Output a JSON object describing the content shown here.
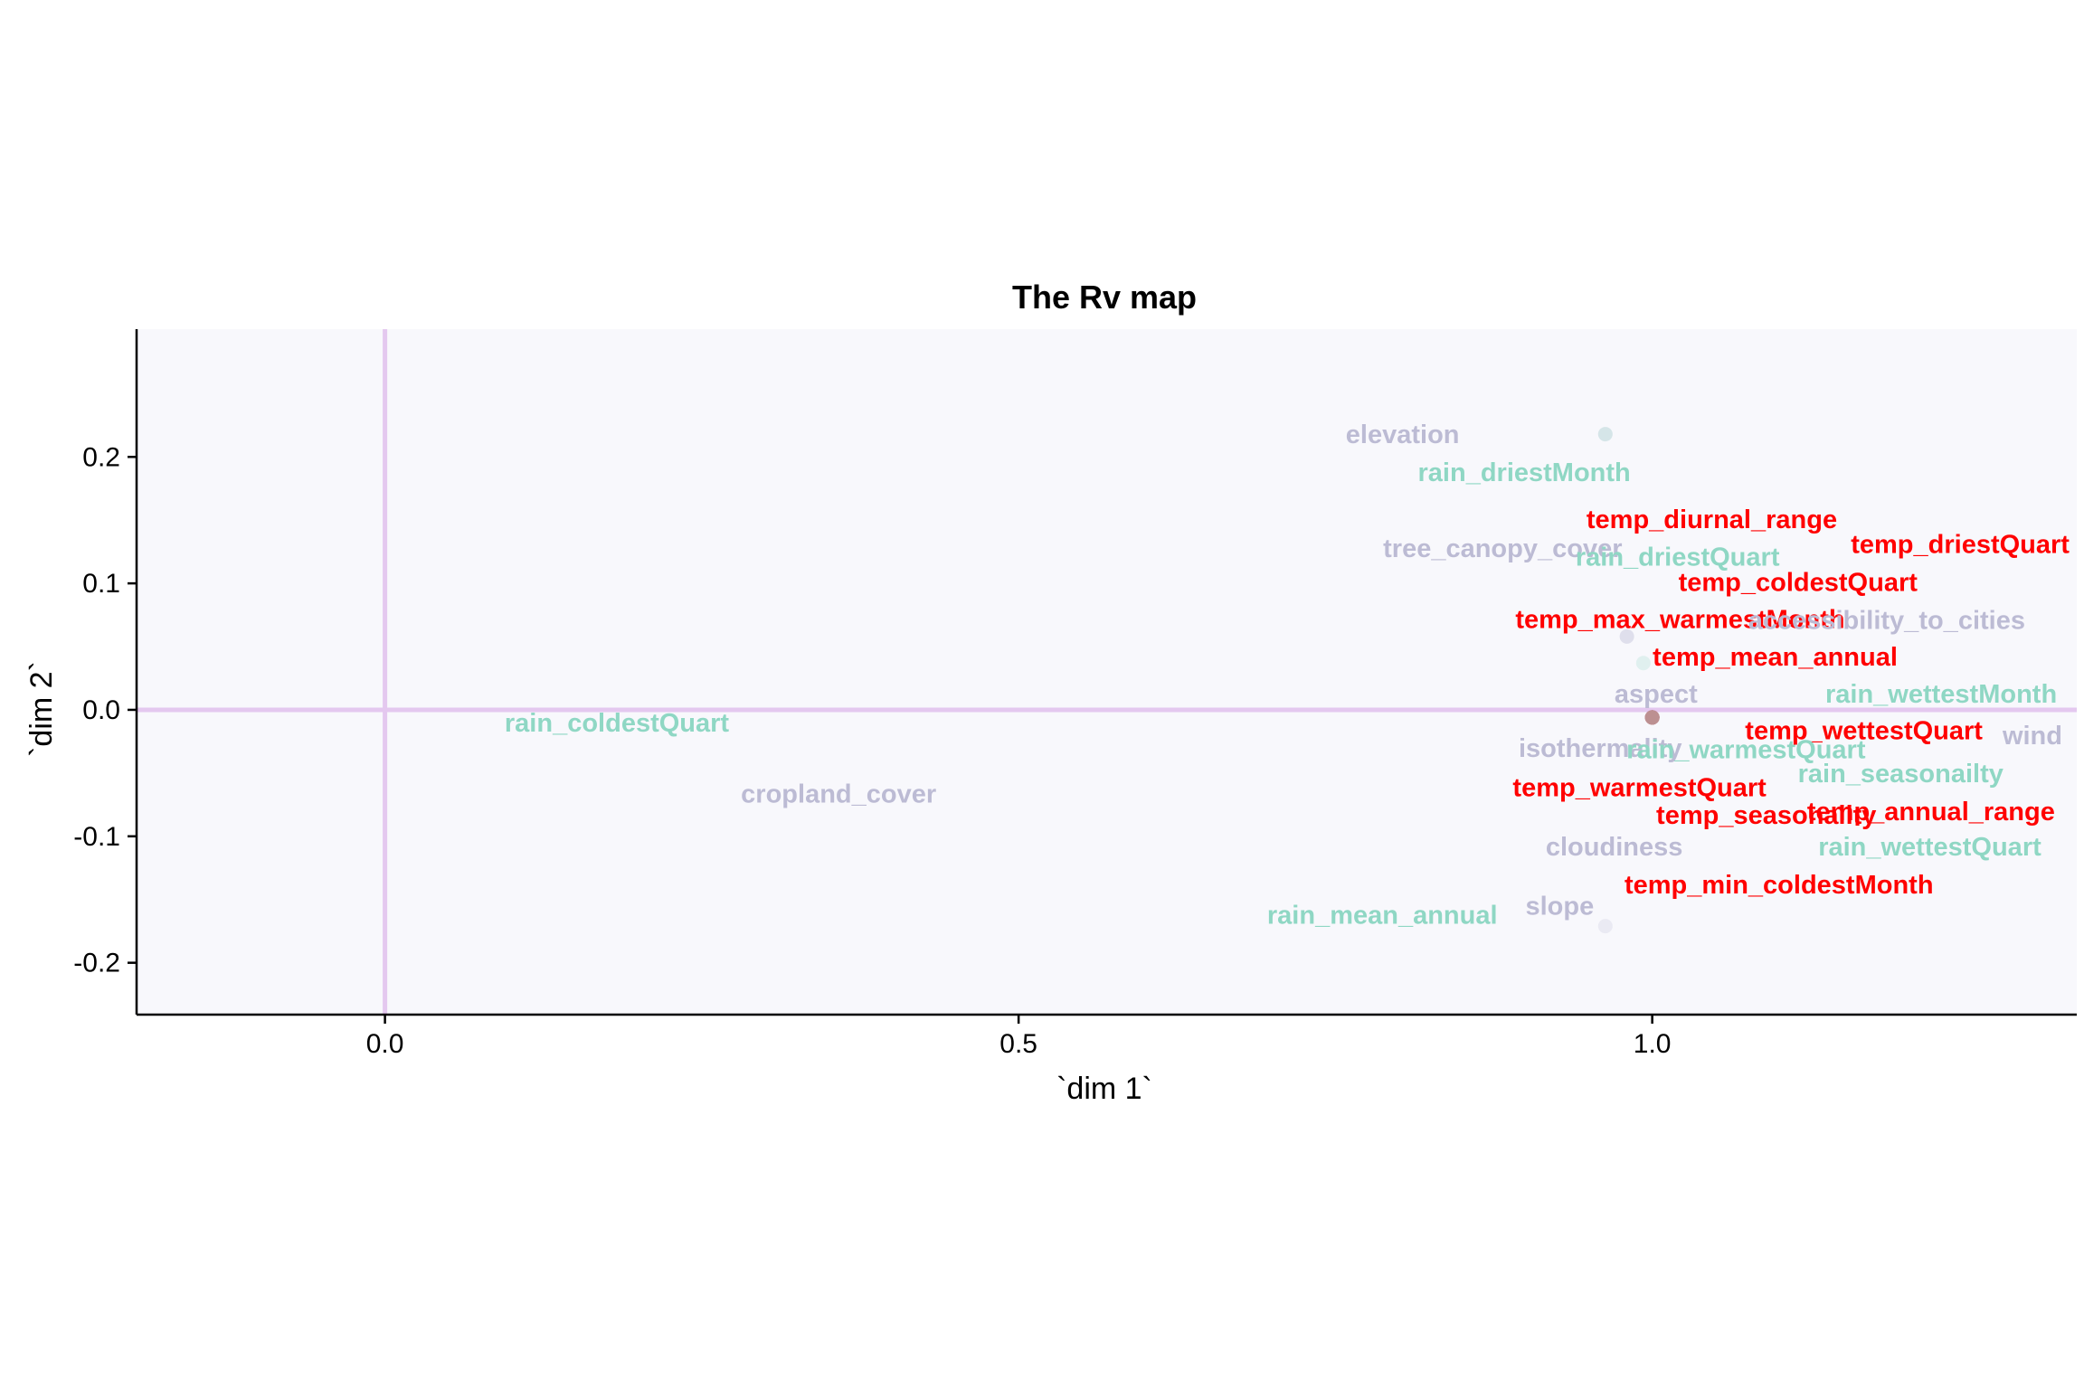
{
  "chart_data": {
    "type": "scatter",
    "title": "The Rv map",
    "xlabel": "`dim 1`",
    "ylabel": "`dim 2`",
    "xlim": [
      -0.196,
      1.335
    ],
    "ylim": [
      -0.241,
      0.301
    ],
    "xticks": [
      "0.0",
      "0.5",
      "1.0"
    ],
    "yticks": [
      "0.2",
      "0.1",
      "0.0",
      "-0.1",
      "-0.2"
    ],
    "grid": false,
    "legend": "none",
    "colors": {
      "panel_bg": "#f8f8fc",
      "reference_line": "#e4c8ef",
      "group_temp": "#ff0000",
      "group_rain": "#8fd7c4",
      "group_other": "#bcbbd4",
      "point_temp": "#e0555e"
    },
    "points": [
      {
        "label": "elevation",
        "group": "other",
        "x": 0.963,
        "y": 0.218
      },
      {
        "label": "rain_driestMonth",
        "group": "rain",
        "x": 0.963,
        "y": 0.218
      },
      {
        "label": "temp_diurnal_range",
        "group": "temp",
        "x": 1.0,
        "y": -0.006
      },
      {
        "label": "temp_driestQuart",
        "group": "temp",
        "x": 1.0,
        "y": -0.006
      },
      {
        "label": "tree_canopy_cover",
        "group": "other",
        "x": 0.98,
        "y": 0.058
      },
      {
        "label": "rain_driestQuart",
        "group": "rain",
        "x": 0.993,
        "y": 0.037
      },
      {
        "label": "temp_coldestQuart",
        "group": "temp",
        "x": 1.0,
        "y": -0.006
      },
      {
        "label": "temp_max_warmestMonth",
        "group": "temp",
        "x": 1.0,
        "y": -0.006
      },
      {
        "label": "accessibility_to_cities",
        "group": "other",
        "x": 0.98,
        "y": 0.058
      },
      {
        "label": "temp_mean_annual",
        "group": "temp",
        "x": 1.0,
        "y": -0.006
      },
      {
        "label": "aspect",
        "group": "other",
        "x": 1.0,
        "y": -0.006
      },
      {
        "label": "rain_wettestMonth",
        "group": "rain",
        "x": 1.0,
        "y": -0.006
      },
      {
        "label": "rain_coldestQuart",
        "group": "rain",
        "x": 1.0,
        "y": -0.006
      },
      {
        "label": "temp_wettestQuart",
        "group": "temp",
        "x": 1.0,
        "y": -0.006
      },
      {
        "label": "wind",
        "group": "other",
        "x": 1.0,
        "y": -0.006
      },
      {
        "label": "isothermality",
        "group": "other",
        "x": 1.0,
        "y": -0.006
      },
      {
        "label": "rain_warmestQuart",
        "group": "rain",
        "x": 1.0,
        "y": -0.006
      },
      {
        "label": "rain_seasonailty",
        "group": "rain",
        "x": 1.0,
        "y": -0.006
      },
      {
        "label": "cropland_cover",
        "group": "other",
        "x": 1.0,
        "y": -0.006
      },
      {
        "label": "temp_warmestQuart",
        "group": "temp",
        "x": 1.0,
        "y": -0.006
      },
      {
        "label": "temp_seasonality",
        "group": "temp",
        "x": 1.0,
        "y": -0.006
      },
      {
        "label": "temp_annual_range",
        "group": "temp",
        "x": 1.0,
        "y": -0.006
      },
      {
        "label": "cloudiness",
        "group": "other",
        "x": 1.0,
        "y": -0.006
      },
      {
        "label": "rain_wettestQuart",
        "group": "rain",
        "x": 1.0,
        "y": -0.006
      },
      {
        "label": "temp_min_coldestMonth",
        "group": "temp",
        "x": 1.0,
        "y": -0.006
      },
      {
        "label": "rain_mean_annual",
        "group": "rain",
        "x": 1.0,
        "y": -0.006
      },
      {
        "label": "slope",
        "group": "other",
        "x": 0.963,
        "y": -0.171
      }
    ],
    "text_labels": [
      {
        "label": "elevation",
        "group": "other",
        "x": 0.803,
        "y": 0.218
      },
      {
        "label": "rain_driestMonth",
        "group": "rain",
        "x": 0.899,
        "y": 0.188
      },
      {
        "label": "temp_diurnal_range",
        "group": "temp",
        "x": 1.047,
        "y": 0.151
      },
      {
        "label": "temp_driestQuart",
        "group": "temp",
        "x": 1.243,
        "y": 0.131
      },
      {
        "label": "tree_canopy_cover",
        "group": "other",
        "x": 0.882,
        "y": 0.128
      },
      {
        "label": "rain_driestQuart",
        "group": "rain",
        "x": 1.02,
        "y": 0.121
      },
      {
        "label": "temp_coldestQuart",
        "group": "temp",
        "x": 1.115,
        "y": 0.101
      },
      {
        "label": "temp_max_warmestMonth",
        "group": "temp",
        "x": 1.022,
        "y": 0.072
      },
      {
        "label": "accessibility_to_cities",
        "group": "other",
        "x": 1.185,
        "y": 0.071
      },
      {
        "label": "temp_mean_annual",
        "group": "temp",
        "x": 1.097,
        "y": 0.042
      },
      {
        "label": "aspect",
        "group": "other",
        "x": 1.003,
        "y": 0.013
      },
      {
        "label": "rain_wettestMonth",
        "group": "rain",
        "x": 1.228,
        "y": 0.013
      },
      {
        "label": "rain_coldestQuart",
        "group": "rain",
        "x": 0.183,
        "y": -0.01
      },
      {
        "label": "temp_wettestQuart",
        "group": "temp",
        "x": 1.167,
        "y": -0.016
      },
      {
        "label": "wind",
        "group": "other",
        "x": 1.3,
        "y": -0.02
      },
      {
        "label": "isothermality",
        "group": "other",
        "x": 0.959,
        "y": -0.03
      },
      {
        "label": "rain_warmestQuart",
        "group": "rain",
        "x": 1.074,
        "y": -0.031
      },
      {
        "label": "rain_seasonailty",
        "group": "rain",
        "x": 1.196,
        "y": -0.05
      },
      {
        "label": "cropland_cover",
        "group": "other",
        "x": 0.358,
        "y": -0.066
      },
      {
        "label": "temp_warmestQuart",
        "group": "temp",
        "x": 0.99,
        "y": -0.061
      },
      {
        "label": "temp_seasonality",
        "group": "temp",
        "x": 1.09,
        "y": -0.083
      },
      {
        "label": "temp_annual_range",
        "group": "temp",
        "x": 1.22,
        "y": -0.08
      },
      {
        "label": "cloudiness",
        "group": "other",
        "x": 0.97,
        "y": -0.108
      },
      {
        "label": "rain_wettestQuart",
        "group": "rain",
        "x": 1.219,
        "y": -0.108
      },
      {
        "label": "temp_min_coldestMonth",
        "group": "temp",
        "x": 1.1,
        "y": -0.138
      },
      {
        "label": "rain_mean_annual",
        "group": "rain",
        "x": 0.787,
        "y": -0.162
      },
      {
        "label": "slope",
        "group": "other",
        "x": 0.927,
        "y": -0.155
      }
    ]
  }
}
